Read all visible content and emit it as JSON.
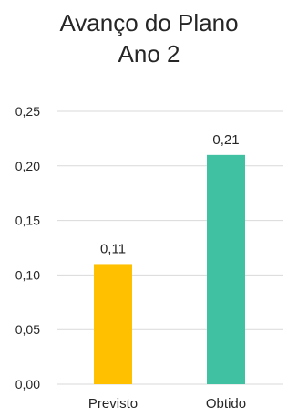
{
  "chart_data": {
    "type": "bar",
    "title_lines": [
      "Avanço do Plano",
      "Ano 2"
    ],
    "categories": [
      "Previsto",
      "Obtido"
    ],
    "values": [
      0.11,
      0.21
    ],
    "data_labels": [
      "0,11",
      "0,21"
    ],
    "bar_colors": [
      "#FFC000",
      "#40C1A2"
    ],
    "ylim": [
      0,
      0.25
    ],
    "yticks": [
      0,
      0.05,
      0.1,
      0.15,
      0.2,
      0.25
    ],
    "ytick_labels": [
      "0,00",
      "0,05",
      "0,10",
      "0,15",
      "0,20",
      "0,25"
    ],
    "grid": true,
    "gridline_color": "#D9D9D9",
    "xlabel": "",
    "ylabel": "",
    "legend": "none"
  }
}
